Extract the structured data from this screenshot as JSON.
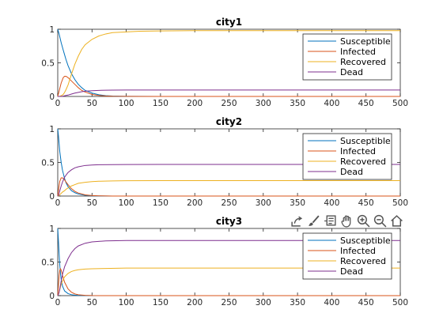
{
  "colors": {
    "susceptible": "#0072BD",
    "infected": "#D95319",
    "recovered": "#EDB120",
    "dead": "#7E2F8E"
  },
  "toolbar": {
    "icons": [
      "export-icon",
      "brush-icon",
      "data-tips-icon",
      "pan-icon",
      "zoom-in-icon",
      "zoom-out-icon",
      "home-icon"
    ]
  },
  "chart_data": [
    {
      "type": "line",
      "title": "city1",
      "xlim": [
        0,
        500
      ],
      "ylim": [
        0,
        1
      ],
      "xticks": [
        "0",
        "50",
        "100",
        "150",
        "200",
        "250",
        "300",
        "350",
        "400",
        "450",
        "500"
      ],
      "yticks": [
        "0",
        "0.5",
        "1"
      ],
      "legend_position": "top-right",
      "grid": false,
      "x": [
        0,
        2,
        5,
        8,
        10,
        12,
        15,
        20,
        25,
        30,
        35,
        40,
        50,
        60,
        70,
        80,
        100,
        120,
        150,
        200,
        250,
        300,
        350,
        400,
        450,
        500
      ],
      "series": [
        {
          "name": "Susceptible",
          "color_key": "susceptible",
          "values": [
            1.0,
            0.93,
            0.8,
            0.69,
            0.62,
            0.55,
            0.46,
            0.34,
            0.25,
            0.18,
            0.13,
            0.09,
            0.05,
            0.025,
            0.012,
            0.006,
            0.002,
            0.001,
            0.0,
            0.0,
            0.0,
            0.0,
            0.0,
            0.0,
            0.0,
            0.0
          ]
        },
        {
          "name": "Infected",
          "color_key": "infected",
          "values": [
            0.0,
            0.08,
            0.2,
            0.28,
            0.3,
            0.3,
            0.28,
            0.23,
            0.18,
            0.13,
            0.09,
            0.065,
            0.03,
            0.015,
            0.007,
            0.003,
            0.001,
            0.0,
            0.0,
            0.0,
            0.0,
            0.0,
            0.0,
            0.0,
            0.0,
            0.0
          ]
        },
        {
          "name": "Recovered",
          "color_key": "recovered",
          "values": [
            0.0,
            0.0,
            0.01,
            0.03,
            0.06,
            0.1,
            0.17,
            0.33,
            0.48,
            0.6,
            0.7,
            0.77,
            0.85,
            0.9,
            0.93,
            0.95,
            0.96,
            0.97,
            0.975,
            0.98,
            0.98,
            0.98,
            0.98,
            0.98,
            0.98,
            0.98
          ]
        },
        {
          "name": "Dead",
          "color_key": "dead",
          "values": [
            0.0,
            0.0,
            0.0,
            0.005,
            0.01,
            0.015,
            0.02,
            0.035,
            0.05,
            0.06,
            0.07,
            0.078,
            0.085,
            0.09,
            0.092,
            0.094,
            0.095,
            0.095,
            0.095,
            0.095,
            0.095,
            0.095,
            0.095,
            0.095,
            0.095,
            0.095
          ]
        }
      ]
    },
    {
      "type": "line",
      "title": "city2",
      "xlim": [
        0,
        500
      ],
      "ylim": [
        0,
        1
      ],
      "xticks": [
        "0",
        "50",
        "100",
        "150",
        "200",
        "250",
        "300",
        "350",
        "400",
        "450",
        "500"
      ],
      "yticks": [
        "0",
        "0.5",
        "1"
      ],
      "legend_position": "top-right",
      "grid": false,
      "x": [
        0,
        1,
        2,
        3,
        5,
        7,
        10,
        12,
        15,
        20,
        25,
        30,
        40,
        50,
        60,
        80,
        100,
        150,
        200,
        300,
        400,
        500
      ],
      "series": [
        {
          "name": "Susceptible",
          "color_key": "susceptible",
          "values": [
            1.0,
            0.9,
            0.78,
            0.66,
            0.5,
            0.38,
            0.26,
            0.2,
            0.14,
            0.08,
            0.05,
            0.03,
            0.012,
            0.005,
            0.002,
            0.0,
            0.0,
            0.0,
            0.0,
            0.0,
            0.0,
            0.0
          ]
        },
        {
          "name": "Infected",
          "color_key": "infected",
          "values": [
            0.0,
            0.08,
            0.16,
            0.22,
            0.27,
            0.27,
            0.24,
            0.21,
            0.17,
            0.11,
            0.07,
            0.045,
            0.018,
            0.007,
            0.003,
            0.0,
            0.0,
            0.0,
            0.0,
            0.0,
            0.0,
            0.0
          ]
        },
        {
          "name": "Recovered",
          "color_key": "recovered",
          "values": [
            0.0,
            0.003,
            0.01,
            0.02,
            0.04,
            0.06,
            0.08,
            0.1,
            0.12,
            0.15,
            0.17,
            0.19,
            0.205,
            0.215,
            0.22,
            0.225,
            0.228,
            0.23,
            0.23,
            0.23,
            0.23,
            0.23
          ]
        },
        {
          "name": "Dead",
          "color_key": "dead",
          "values": [
            0.0,
            0.01,
            0.04,
            0.08,
            0.15,
            0.21,
            0.28,
            0.31,
            0.35,
            0.39,
            0.42,
            0.435,
            0.455,
            0.462,
            0.466,
            0.468,
            0.469,
            0.47,
            0.47,
            0.47,
            0.47,
            0.47
          ]
        }
      ]
    },
    {
      "type": "line",
      "title": "city3",
      "xlim": [
        0,
        500
      ],
      "ylim": [
        0,
        1
      ],
      "xticks": [
        "0",
        "50",
        "100",
        "150",
        "200",
        "250",
        "300",
        "350",
        "400",
        "450",
        "500"
      ],
      "yticks": [
        "0",
        "0.5",
        "1"
      ],
      "legend_position": "top-right",
      "grid": false,
      "x": [
        0,
        1,
        2,
        3,
        4,
        5,
        7,
        10,
        15,
        20,
        25,
        30,
        40,
        50,
        70,
        100,
        150,
        200,
        300,
        400,
        500
      ],
      "series": [
        {
          "name": "Susceptible",
          "color_key": "susceptible",
          "values": [
            1.0,
            0.82,
            0.62,
            0.45,
            0.33,
            0.24,
            0.14,
            0.07,
            0.03,
            0.014,
            0.007,
            0.003,
            0.001,
            0.0,
            0.0,
            0.0,
            0.0,
            0.0,
            0.0,
            0.0,
            0.0
          ]
        },
        {
          "name": "Infected",
          "color_key": "infected",
          "values": [
            0.0,
            0.15,
            0.3,
            0.38,
            0.4,
            0.38,
            0.3,
            0.2,
            0.1,
            0.05,
            0.025,
            0.013,
            0.004,
            0.001,
            0.0,
            0.0,
            0.0,
            0.0,
            0.0,
            0.0,
            0.0
          ]
        },
        {
          "name": "Recovered",
          "color_key": "recovered",
          "values": [
            0.0,
            0.02,
            0.05,
            0.09,
            0.13,
            0.17,
            0.22,
            0.28,
            0.33,
            0.36,
            0.375,
            0.385,
            0.395,
            0.4,
            0.405,
            0.41,
            0.41,
            0.41,
            0.41,
            0.41,
            0.41
          ]
        },
        {
          "name": "Dead",
          "color_key": "dead",
          "values": [
            0.0,
            0.02,
            0.05,
            0.1,
            0.16,
            0.22,
            0.32,
            0.43,
            0.55,
            0.64,
            0.7,
            0.74,
            0.78,
            0.8,
            0.815,
            0.82,
            0.82,
            0.82,
            0.82,
            0.82,
            0.82
          ]
        }
      ]
    }
  ]
}
